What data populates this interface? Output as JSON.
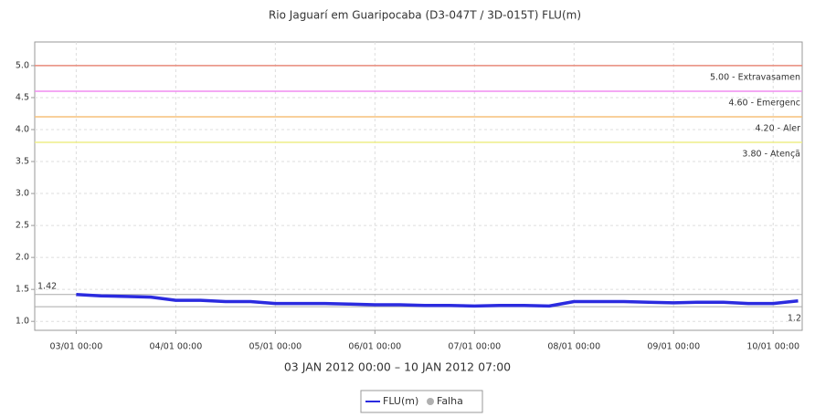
{
  "chart_data": {
    "type": "line",
    "title": "Rio Jaguarí em Guaripocaba (D3-047T / 3D-015T) FLU(m)",
    "xlabel": "03 JAN 2012 00:00 – 10 JAN 2012 07:00",
    "x": [
      "2012-01-03T00:00",
      "2012-01-03T06:00",
      "2012-01-03T12:00",
      "2012-01-03T18:00",
      "2012-01-04T00:00",
      "2012-01-04T06:00",
      "2012-01-04T12:00",
      "2012-01-04T18:00",
      "2012-01-05T00:00",
      "2012-01-05T06:00",
      "2012-01-05T12:00",
      "2012-01-05T18:00",
      "2012-01-06T00:00",
      "2012-01-06T06:00",
      "2012-01-06T12:00",
      "2012-01-06T18:00",
      "2012-01-07T00:00",
      "2012-01-07T06:00",
      "2012-01-07T12:00",
      "2012-01-07T18:00",
      "2012-01-08T00:00",
      "2012-01-08T06:00",
      "2012-01-08T12:00",
      "2012-01-08T18:00",
      "2012-01-09T00:00",
      "2012-01-09T06:00",
      "2012-01-09T12:00",
      "2012-01-09T18:00",
      "2012-01-10T00:00",
      "2012-01-10T06:00"
    ],
    "series": [
      {
        "name": "FLU(m)",
        "color": "#2b2bdf",
        "values": [
          1.42,
          1.4,
          1.39,
          1.38,
          1.33,
          1.33,
          1.31,
          1.31,
          1.28,
          1.28,
          1.28,
          1.27,
          1.26,
          1.26,
          1.25,
          1.25,
          1.24,
          1.25,
          1.25,
          1.24,
          1.31,
          1.31,
          1.31,
          1.3,
          1.29,
          1.3,
          1.3,
          1.28,
          1.28,
          1.32
        ]
      }
    ],
    "fault_legend": {
      "name": "Falha",
      "color": "#b0b0b0"
    },
    "xlim": [
      "2012-01-02T14:00",
      "2012-01-10T07:00"
    ],
    "xticks": [
      {
        "value": "2012-01-03T00:00",
        "label": "03/01 00:00"
      },
      {
        "value": "2012-01-04T00:00",
        "label": "04/01 00:00"
      },
      {
        "value": "2012-01-05T00:00",
        "label": "05/01 00:00"
      },
      {
        "value": "2012-01-06T00:00",
        "label": "06/01 00:00"
      },
      {
        "value": "2012-01-07T00:00",
        "label": "07/01 00:00"
      },
      {
        "value": "2012-01-08T00:00",
        "label": "08/01 00:00"
      },
      {
        "value": "2012-01-09T00:00",
        "label": "09/01 00:00"
      },
      {
        "value": "2012-01-10T00:00",
        "label": "10/01 00:00"
      }
    ],
    "ylim": [
      0.86,
      5.37
    ],
    "yticks": [
      {
        "value": 1,
        "label": "1.0"
      },
      1.5,
      {
        "value": 2,
        "label": "2.0"
      },
      2.5,
      {
        "value": 3,
        "label": "3.0"
      },
      3.5,
      {
        "value": 4,
        "label": "4.0"
      },
      4.5,
      {
        "value": 5,
        "label": "5.0"
      }
    ],
    "grid": true,
    "thresholds": [
      {
        "value": 5.0,
        "label": "5.00 - Extravasamen",
        "color": "#e88a7a"
      },
      {
        "value": 4.6,
        "label": "4.60 - Emergenc",
        "color": "#f08cf0"
      },
      {
        "value": 4.2,
        "label": "4.20 - Aler",
        "color": "#f5c07a"
      },
      {
        "value": 3.8,
        "label": "3.80 - Atençã",
        "color": "#eeee88"
      }
    ],
    "reference_lines": [
      {
        "value": 1.42,
        "label": "1.42",
        "side": "left"
      },
      {
        "value": 1.23,
        "label": "1.2",
        "side": "right"
      }
    ]
  }
}
